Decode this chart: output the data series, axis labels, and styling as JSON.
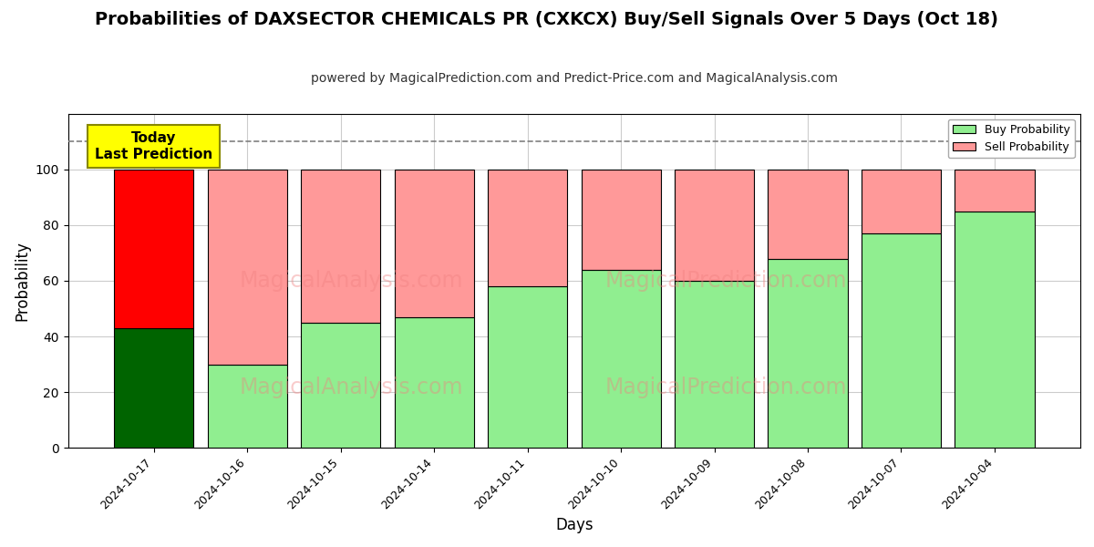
{
  "title": "Probabilities of DAXSECTOR CHEMICALS PR (CXKCX) Buy/Sell Signals Over 5 Days (Oct 18)",
  "subtitle": "powered by MagicalPrediction.com and Predict-Price.com and MagicalAnalysis.com",
  "xlabel": "Days",
  "ylabel": "Probability",
  "dates": [
    "2024-10-17",
    "2024-10-16",
    "2024-10-15",
    "2024-10-14",
    "2024-10-11",
    "2024-10-10",
    "2024-10-09",
    "2024-10-08",
    "2024-10-07",
    "2024-10-04"
  ],
  "buy_probs": [
    43,
    30,
    45,
    47,
    58,
    64,
    60,
    68,
    77,
    85
  ],
  "sell_probs": [
    57,
    70,
    55,
    53,
    42,
    36,
    40,
    32,
    23,
    15
  ],
  "buy_colors": [
    "#006400",
    "#90EE90",
    "#90EE90",
    "#90EE90",
    "#90EE90",
    "#90EE90",
    "#90EE90",
    "#90EE90",
    "#90EE90",
    "#90EE90"
  ],
  "sell_colors": [
    "#FF0000",
    "#FF9999",
    "#FF9999",
    "#FF9999",
    "#FF9999",
    "#FF9999",
    "#FF9999",
    "#FF9999",
    "#FF9999",
    "#FF9999"
  ],
  "today_annotation": "Today\nLast Prediction",
  "dashed_line_y": 110,
  "ylim": [
    0,
    120
  ],
  "yticks": [
    0,
    20,
    40,
    60,
    80,
    100
  ],
  "legend_buy_color": "#90EE90",
  "legend_sell_color": "#FF9999",
  "bar_edge_color": "#000000",
  "bar_width": 0.85,
  "watermark_left": "MagicalAnalysis.com",
  "watermark_right": "MagicalPrediction.com",
  "background_color": "#ffffff",
  "grid_color": "#cccccc",
  "title_fontsize": 14,
  "subtitle_fontsize": 10,
  "axis_label_fontsize": 12,
  "tick_fontsize": 9
}
